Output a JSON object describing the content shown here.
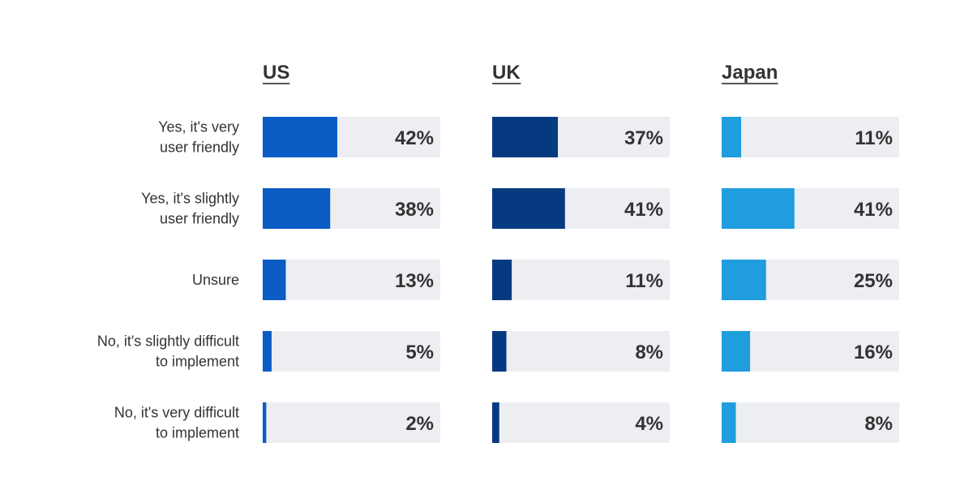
{
  "chart_data": {
    "type": "bar",
    "orientation": "horizontal",
    "categories": [
      [
        "Yes, it's very",
        "user friendly"
      ],
      [
        "Yes, it's slightly",
        "user friendly"
      ],
      [
        "Unsure"
      ],
      [
        "No, it's slightly difficult",
        "to implement"
      ],
      [
        "No, it's very difficult",
        "to implement"
      ]
    ],
    "xlim": [
      0,
      100
    ],
    "value_suffix": "%",
    "grid": false,
    "legend": "none",
    "series": [
      {
        "name": "US",
        "color": "#0b5cc4",
        "values": [
          42,
          38,
          13,
          5,
          2
        ]
      },
      {
        "name": "UK",
        "color": "#063a80",
        "values": [
          37,
          41,
          11,
          8,
          4
        ]
      },
      {
        "name": "Japan",
        "color": "#1f9ddf",
        "values": [
          11,
          41,
          25,
          16,
          8
        ]
      }
    ],
    "track_color": "#eceef2"
  }
}
